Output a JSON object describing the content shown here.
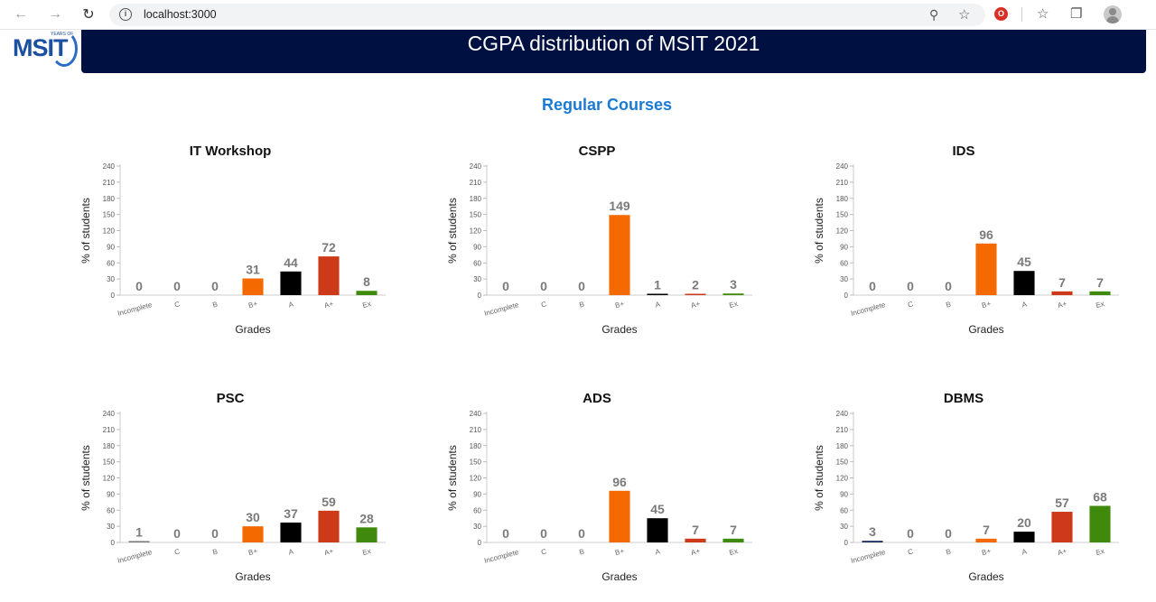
{
  "browser": {
    "url": "localhost:3000"
  },
  "header": {
    "logo_text": "MSIT",
    "logo_sub": "YEARS OF",
    "title": "CGPA distribution of MSIT 2021"
  },
  "section": {
    "title": "Regular Courses"
  },
  "colors": {
    "banner": "#001040",
    "section_title": "#1a7ad4",
    "bars": [
      "#f56a00",
      "#000000",
      "#cc3a1a",
      "#3f8a0c"
    ]
  },
  "chart_data": [
    {
      "type": "bar",
      "title": "IT Workshop",
      "xlabel": "Grades",
      "ylabel": "% of students",
      "ylim": [
        0,
        240
      ],
      "yticks": [
        0,
        30,
        60,
        90,
        120,
        150,
        180,
        210,
        240
      ],
      "categories": [
        "Incomplete",
        "C",
        "B",
        "B+",
        "A",
        "A+",
        "Ex"
      ],
      "values": [
        0,
        0,
        0,
        31,
        44,
        72,
        8
      ],
      "bar_colors": [
        "#777777",
        "#777777",
        "#777777",
        "#f56a00",
        "#000000",
        "#cc3a1a",
        "#3f8a0c"
      ]
    },
    {
      "type": "bar",
      "title": "CSPP",
      "xlabel": "Grades",
      "ylabel": "% of students",
      "ylim": [
        0,
        240
      ],
      "yticks": [
        0,
        30,
        60,
        90,
        120,
        150,
        180,
        210,
        240
      ],
      "categories": [
        "Incomplete",
        "C",
        "B",
        "B+",
        "A",
        "A+",
        "Ex"
      ],
      "values": [
        0,
        0,
        0,
        149,
        1,
        2,
        3
      ],
      "bar_colors": [
        "#777777",
        "#777777",
        "#777777",
        "#f56a00",
        "#000000",
        "#cc3a1a",
        "#3f8a0c"
      ]
    },
    {
      "type": "bar",
      "title": "IDS",
      "xlabel": "Grades",
      "ylabel": "% of students",
      "ylim": [
        0,
        240
      ],
      "yticks": [
        0,
        30,
        60,
        90,
        120,
        150,
        180,
        210,
        240
      ],
      "categories": [
        "Incomplete",
        "C",
        "B",
        "B+",
        "A",
        "A+",
        "Ex"
      ],
      "values": [
        0,
        0,
        0,
        96,
        45,
        7,
        7
      ],
      "bar_colors": [
        "#777777",
        "#777777",
        "#777777",
        "#f56a00",
        "#000000",
        "#cc3a1a",
        "#3f8a0c"
      ]
    },
    {
      "type": "bar",
      "title": "PSC",
      "xlabel": "Grades",
      "ylabel": "% of students",
      "ylim": [
        0,
        240
      ],
      "yticks": [
        0,
        30,
        60,
        90,
        120,
        150,
        180,
        210,
        240
      ],
      "categories": [
        "Incomplete",
        "C",
        "B",
        "B+",
        "A",
        "A+",
        "Ex"
      ],
      "values": [
        1,
        0,
        0,
        30,
        37,
        59,
        28
      ],
      "bar_colors": [
        "#777777",
        "#777777",
        "#777777",
        "#f56a00",
        "#000000",
        "#cc3a1a",
        "#3f8a0c"
      ]
    },
    {
      "type": "bar",
      "title": "ADS",
      "xlabel": "Grades",
      "ylabel": "% of students",
      "ylim": [
        0,
        240
      ],
      "yticks": [
        0,
        30,
        60,
        90,
        120,
        150,
        180,
        210,
        240
      ],
      "categories": [
        "Incomplete",
        "C",
        "B",
        "B+",
        "A",
        "A+",
        "Ex"
      ],
      "values": [
        0,
        0,
        0,
        96,
        45,
        7,
        7
      ],
      "bar_colors": [
        "#777777",
        "#777777",
        "#777777",
        "#f56a00",
        "#000000",
        "#cc3a1a",
        "#3f8a0c"
      ]
    },
    {
      "type": "bar",
      "title": "DBMS",
      "xlabel": "Grades",
      "ylabel": "% of students",
      "ylim": [
        0,
        240
      ],
      "yticks": [
        0,
        30,
        60,
        90,
        120,
        150,
        180,
        210,
        240
      ],
      "categories": [
        "Incomplete",
        "C",
        "B",
        "B+",
        "A",
        "A+",
        "Ex"
      ],
      "values": [
        3,
        0,
        0,
        7,
        20,
        57,
        68
      ],
      "bar_colors": [
        "#1a2a5a",
        "#777777",
        "#777777",
        "#f56a00",
        "#000000",
        "#cc3a1a",
        "#3f8a0c"
      ]
    }
  ]
}
